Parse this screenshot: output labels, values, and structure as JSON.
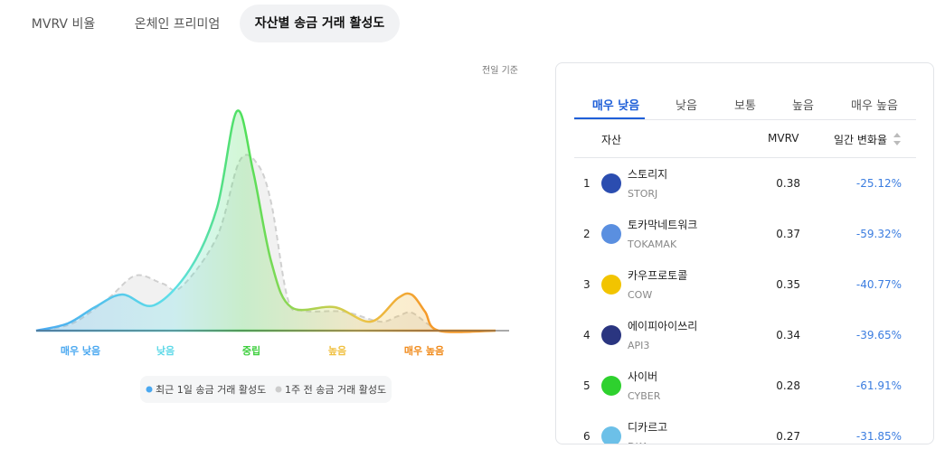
{
  "tabs": [
    "MVRV 비율",
    "온체인 프리미엄",
    "자산별 송금 거래 활성도"
  ],
  "chart": {
    "basis": "전일 기준",
    "x_labels": [
      "매우 낮음",
      "낮음",
      "중립",
      "높음",
      "매우 높음"
    ],
    "legend": [
      "최근 1일 송금 거래 활성도",
      "1주 전 송금 거래 활성도"
    ]
  },
  "panel": {
    "tabs": [
      "매우 낮음",
      "낮음",
      "보통",
      "높음",
      "매우 높음"
    ],
    "header": [
      "자산",
      "MVRV",
      "일간 변화율"
    ],
    "rows": [
      [
        "1",
        "스토리지",
        "STORJ",
        "0.38",
        "-25.12%"
      ],
      [
        "2",
        "토카막네트워크",
        "TOKAMAK",
        "0.37",
        "-59.32%"
      ],
      [
        "3",
        "카우프로토콜",
        "COW",
        "0.35",
        "-40.77%"
      ],
      [
        "4",
        "에이피아이쓰리",
        "API3",
        "0.34",
        "-39.65%"
      ],
      [
        "5",
        "사이버",
        "CYBER",
        "0.28",
        "-61.91%"
      ],
      [
        "6",
        "디카르고",
        "DKA",
        "0.27",
        "-31.85%"
      ]
    ]
  }
}
